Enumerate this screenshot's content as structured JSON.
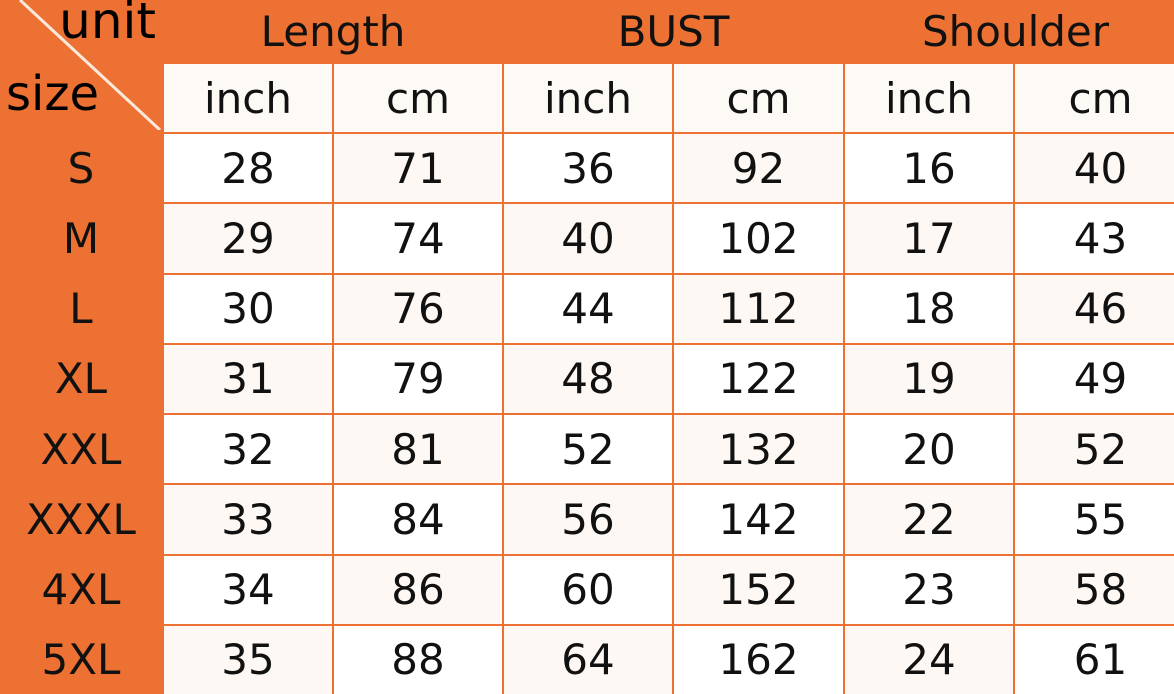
{
  "chart_data": {
    "type": "table",
    "corner": {
      "column_label": "unit",
      "row_label": "size"
    },
    "groups": [
      "Length",
      "BUST",
      "Shoulder"
    ],
    "units": [
      "inch",
      "cm",
      "inch",
      "cm",
      "inch",
      "cm"
    ],
    "rows": [
      {
        "size": "S",
        "values": [
          "28",
          "71",
          "36",
          "92",
          "16",
          "40"
        ]
      },
      {
        "size": "M",
        "values": [
          "29",
          "74",
          "40",
          "102",
          "17",
          "43"
        ]
      },
      {
        "size": "L",
        "values": [
          "30",
          "76",
          "44",
          "112",
          "18",
          "46"
        ]
      },
      {
        "size": "XL",
        "values": [
          "31",
          "79",
          "48",
          "122",
          "19",
          "49"
        ]
      },
      {
        "size": "XXL",
        "values": [
          "32",
          "81",
          "52",
          "132",
          "20",
          "52"
        ]
      },
      {
        "size": "XXXL",
        "values": [
          "33",
          "84",
          "56",
          "142",
          "22",
          "55"
        ]
      },
      {
        "size": "4XL",
        "values": [
          "34",
          "86",
          "60",
          "152",
          "23",
          "58"
        ]
      },
      {
        "size": "5XL",
        "values": [
          "35",
          "88",
          "64",
          "162",
          "24",
          "61"
        ]
      }
    ],
    "colors": {
      "header": "#ec7133",
      "cell": "#ffffff"
    }
  }
}
